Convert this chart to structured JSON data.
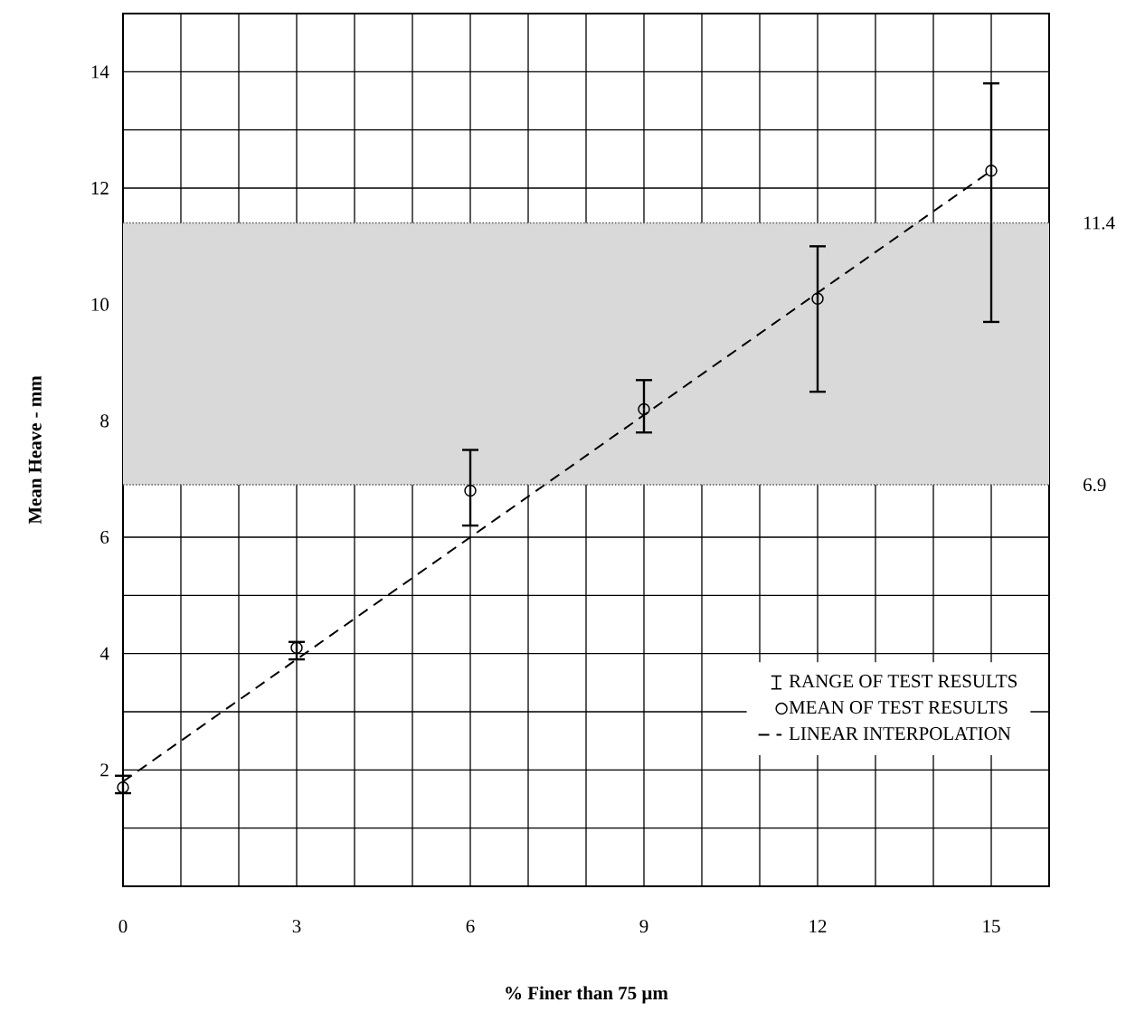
{
  "chart_data": {
    "type": "scatter",
    "xlabel": "% Finer than 75 µm",
    "ylabel": "Mean Heave - mm",
    "annotations": [
      "RANGE OF TEST RESULTS"
    ],
    "xlim": [
      0,
      16
    ],
    "ylim": [
      0,
      15
    ],
    "xticks": [
      0,
      {
        "value": 1,
        "label": null
      },
      {
        "value": 2,
        "label": null
      },
      3,
      {
        "value": 4,
        "label": null
      },
      {
        "value": 5,
        "label": null
      },
      6,
      {
        "value": 7,
        "label": null
      },
      {
        "value": 8,
        "label": null
      },
      9,
      {
        "value": 10,
        "label": null
      },
      {
        "value": 11,
        "label": null
      },
      12,
      {
        "value": 13,
        "label": null
      },
      {
        "value": 14,
        "label": null
      },
      15,
      {
        "value": 16,
        "label": null
      }
    ],
    "yticks": [
      {
        "value": 0,
        "label": null
      },
      {
        "value": 1,
        "label": null
      },
      2,
      {
        "value": 3,
        "label": null
      },
      4,
      {
        "value": 5,
        "label": null
      },
      6,
      {
        "value": 7,
        "label": null
      },
      8,
      {
        "value": 9,
        "label": null
      },
      10,
      {
        "value": 11,
        "label": null
      },
      12,
      {
        "value": 13,
        "label": null
      },
      14,
      {
        "value": 15,
        "label": null
      }
    ],
    "grid": true,
    "legend": "bottom right",
    "bands": [
      {
        "axis": "y",
        "from": 6.9,
        "to": 11.4,
        "color": "#d9d9d9"
      }
    ],
    "ref_lines": [
      {
        "axis": "y",
        "value": 11.4,
        "label": "11.4",
        "line_style": "dotted",
        "color": "#555555"
      },
      {
        "axis": "y",
        "value": 6.9,
        "label": "6.9",
        "line_style": "dotted",
        "color": "#555555"
      }
    ],
    "series": [
      {
        "name": "MEAN OF TEST RESULTS",
        "marker": "circle",
        "color": "#000000",
        "x": [
          0,
          3,
          6,
          9,
          12,
          15
        ],
        "values": [
          1.7,
          4.1,
          6.8,
          8.2,
          10.1,
          12.3
        ],
        "errors": [
          [
            1.6,
            1.9
          ],
          [
            3.9,
            4.2
          ],
          [
            6.2,
            7.5
          ],
          [
            7.8,
            8.7
          ],
          [
            8.5,
            11.0
          ],
          [
            9.7,
            13.8
          ]
        ]
      },
      {
        "name": "LINEAR INTERPOLATION",
        "type": "line",
        "marker": "none",
        "line_style": "dashed",
        "color": "#000000",
        "x": [
          0,
          15
        ],
        "values": [
          1.8,
          12.3
        ]
      }
    ]
  }
}
